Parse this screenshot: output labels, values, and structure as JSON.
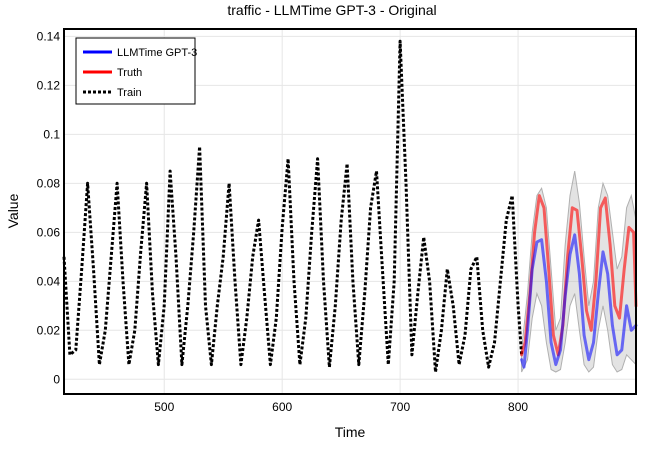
{
  "chart_data": {
    "type": "line",
    "title": "traffic - LLMTime GPT-3 - Original",
    "xlabel": "Time",
    "ylabel": "Value",
    "xlim": [
      415,
      900
    ],
    "ylim": [
      -0.006,
      0.143
    ],
    "xticks": [
      500,
      600,
      700,
      800
    ],
    "yticks": [
      0,
      0.02,
      0.04,
      0.06,
      0.08,
      0.1,
      0.12,
      0.14
    ],
    "ytick_labels": [
      "0",
      "0.02",
      "0.04",
      "0.06",
      "0.08",
      "0.1",
      "0.12",
      "0.14"
    ],
    "grid": true,
    "legend_position": "top-left",
    "forecast_start": 803,
    "series": [
      {
        "name": "LLMTime GPT-3",
        "color": "#0000ff",
        "style": "solid",
        "x": [
          803,
          805,
          808,
          812,
          816,
          820,
          824,
          828,
          832,
          836,
          840,
          844,
          848,
          852,
          856,
          860,
          864,
          868,
          872,
          876,
          880,
          884,
          888,
          892,
          896,
          900
        ],
        "values": [
          0.008,
          0.005,
          0.02,
          0.045,
          0.056,
          0.057,
          0.04,
          0.015,
          0.006,
          0.012,
          0.034,
          0.051,
          0.059,
          0.043,
          0.018,
          0.008,
          0.015,
          0.035,
          0.052,
          0.043,
          0.022,
          0.01,
          0.012,
          0.03,
          0.02,
          0.022
        ]
      },
      {
        "name": "Truth",
        "color": "#ff0000",
        "style": "solid",
        "x": [
          803,
          806,
          810,
          814,
          818,
          822,
          826,
          830,
          834,
          838,
          842,
          846,
          850,
          854,
          858,
          862,
          866,
          870,
          874,
          878,
          882,
          886,
          890,
          894,
          898,
          900
        ],
        "values": [
          0.01,
          0.015,
          0.035,
          0.06,
          0.075,
          0.07,
          0.045,
          0.018,
          0.01,
          0.022,
          0.05,
          0.07,
          0.069,
          0.05,
          0.028,
          0.02,
          0.04,
          0.07,
          0.074,
          0.055,
          0.03,
          0.025,
          0.045,
          0.062,
          0.06,
          0.03
        ]
      },
      {
        "name": "Train",
        "color": "#000000",
        "style": "dotted",
        "x": [
          415,
          420,
          425,
          430,
          435,
          440,
          445,
          450,
          455,
          460,
          465,
          470,
          475,
          480,
          485,
          490,
          495,
          500,
          505,
          510,
          515,
          520,
          525,
          530,
          535,
          540,
          545,
          550,
          555,
          560,
          565,
          570,
          575,
          580,
          585,
          590,
          595,
          600,
          605,
          610,
          615,
          620,
          625,
          630,
          635,
          640,
          645,
          650,
          655,
          660,
          665,
          670,
          675,
          680,
          685,
          690,
          695,
          700,
          705,
          710,
          715,
          720,
          725,
          730,
          735,
          740,
          745,
          750,
          755,
          760,
          765,
          770,
          775,
          780,
          785,
          790,
          795,
          800,
          803
        ],
        "values": [
          0.05,
          0.01,
          0.012,
          0.045,
          0.08,
          0.045,
          0.006,
          0.02,
          0.05,
          0.08,
          0.04,
          0.006,
          0.02,
          0.052,
          0.08,
          0.035,
          0.006,
          0.03,
          0.085,
          0.05,
          0.006,
          0.03,
          0.06,
          0.095,
          0.03,
          0.006,
          0.03,
          0.05,
          0.08,
          0.04,
          0.006,
          0.025,
          0.05,
          0.065,
          0.035,
          0.006,
          0.025,
          0.062,
          0.09,
          0.04,
          0.006,
          0.025,
          0.06,
          0.09,
          0.04,
          0.005,
          0.03,
          0.065,
          0.088,
          0.04,
          0.006,
          0.035,
          0.07,
          0.085,
          0.045,
          0.006,
          0.04,
          0.138,
          0.08,
          0.01,
          0.035,
          0.058,
          0.04,
          0.003,
          0.02,
          0.045,
          0.03,
          0.006,
          0.018,
          0.045,
          0.05,
          0.02,
          0.005,
          0.015,
          0.04,
          0.065,
          0.075,
          0.03,
          0.01
        ]
      }
    ],
    "band": {
      "name": "prediction interval",
      "color": "#b0b0b0",
      "x": [
        803,
        808,
        812,
        816,
        820,
        824,
        828,
        832,
        836,
        840,
        844,
        848,
        852,
        856,
        860,
        864,
        868,
        872,
        876,
        880,
        884,
        888,
        892,
        896,
        900
      ],
      "lower": [
        0.003,
        0.008,
        0.025,
        0.035,
        0.03,
        0.015,
        0.004,
        0.003,
        0.004,
        0.015,
        0.03,
        0.035,
        0.02,
        0.006,
        0.003,
        0.005,
        0.02,
        0.03,
        0.02,
        0.006,
        0.003,
        0.004,
        0.01,
        0.008,
        0.006
      ],
      "upper": [
        0.012,
        0.035,
        0.06,
        0.075,
        0.078,
        0.07,
        0.045,
        0.02,
        0.025,
        0.055,
        0.075,
        0.085,
        0.072,
        0.05,
        0.03,
        0.04,
        0.07,
        0.08,
        0.075,
        0.06,
        0.045,
        0.05,
        0.07,
        0.075,
        0.065
      ]
    }
  }
}
